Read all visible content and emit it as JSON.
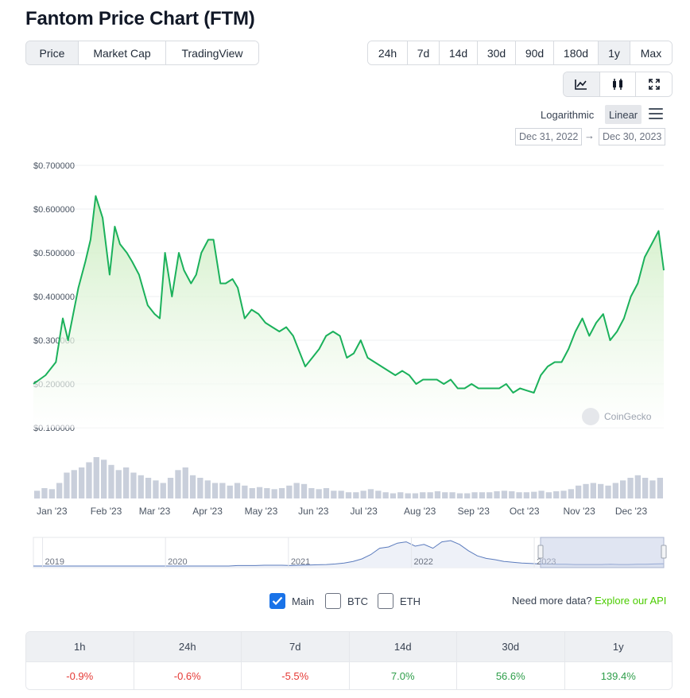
{
  "title": "Fantom Price Chart (FTM)",
  "tabs": [
    {
      "label": "Price",
      "active": true
    },
    {
      "label": "Market Cap",
      "active": false
    },
    {
      "label": "TradingView",
      "active": false
    }
  ],
  "ranges": [
    {
      "label": "24h",
      "active": false
    },
    {
      "label": "7d",
      "active": false
    },
    {
      "label": "14d",
      "active": false
    },
    {
      "label": "30d",
      "active": false
    },
    {
      "label": "90d",
      "active": false
    },
    {
      "label": "180d",
      "active": false
    },
    {
      "label": "1y",
      "active": true
    },
    {
      "label": "Max",
      "active": false
    }
  ],
  "view_buttons": [
    {
      "icon": "line-chart-icon",
      "active": true
    },
    {
      "icon": "candlestick-icon",
      "active": false
    },
    {
      "icon": "fullscreen-icon",
      "active": false
    }
  ],
  "scale": {
    "log_label": "Logarithmic",
    "linear_label": "Linear",
    "selected": "Linear"
  },
  "date_range": {
    "from": "Dec 31, 2022",
    "arrow": "→",
    "to": "Dec 30, 2023"
  },
  "watermark": "CoinGecko",
  "colors": {
    "line": "#1bb15b",
    "area": "#e8f6e2",
    "volume": "#c9cfdb",
    "accent": "#1a73e8",
    "link": "#4bcc00",
    "negative": "#e53935",
    "positive": "#2e9e4a",
    "navigator_line": "#5b7bbd",
    "navigator_selection": "#c7d0e8"
  },
  "chart_data": {
    "type": "area",
    "title": "Fantom Price Chart (FTM)",
    "ylim": [
      0.1,
      0.7
    ],
    "y_ticks": [
      "$0.700000",
      "$0.600000",
      "$0.500000",
      "$0.400000",
      "$0.300000",
      "$0.200000",
      "$0.100000"
    ],
    "y_tick_values": [
      0.7,
      0.6,
      0.5,
      0.4,
      0.3,
      0.2,
      0.1
    ],
    "x_ticks": [
      "Jan '23",
      "Feb '23",
      "Mar '23",
      "Apr '23",
      "May '23",
      "Jun '23",
      "Jul '23",
      "Aug '23",
      "Sep '23",
      "Oct '23",
      "Nov '23",
      "Dec '23"
    ],
    "x_tick_dates": [
      "2023-01-01",
      "2023-02-01",
      "2023-03-01",
      "2023-04-01",
      "2023-05-01",
      "2023-06-01",
      "2023-07-01",
      "2023-08-01",
      "2023-09-01",
      "2023-10-01",
      "2023-11-01",
      "2023-12-01"
    ],
    "series": [
      {
        "name": "Main",
        "x": [
          "2022-12-31",
          "2023-01-07",
          "2023-01-13",
          "2023-01-17",
          "2023-01-20",
          "2023-01-26",
          "2023-01-30",
          "2023-02-02",
          "2023-02-05",
          "2023-02-09",
          "2023-02-13",
          "2023-02-16",
          "2023-02-19",
          "2023-02-23",
          "2023-02-26",
          "2023-03-02",
          "2023-03-07",
          "2023-03-11",
          "2023-03-14",
          "2023-03-17",
          "2023-03-21",
          "2023-03-25",
          "2023-03-28",
          "2023-04-01",
          "2023-04-04",
          "2023-04-07",
          "2023-04-11",
          "2023-04-14",
          "2023-04-18",
          "2023-04-21",
          "2023-04-25",
          "2023-04-28",
          "2023-05-02",
          "2023-05-06",
          "2023-05-10",
          "2023-05-14",
          "2023-05-18",
          "2023-05-22",
          "2023-05-26",
          "2023-05-30",
          "2023-06-02",
          "2023-06-06",
          "2023-06-10",
          "2023-06-14",
          "2023-06-18",
          "2023-06-22",
          "2023-06-26",
          "2023-06-30",
          "2023-07-04",
          "2023-07-08",
          "2023-07-12",
          "2023-07-16",
          "2023-07-20",
          "2023-07-24",
          "2023-07-28",
          "2023-08-01",
          "2023-08-05",
          "2023-08-09",
          "2023-08-13",
          "2023-08-17",
          "2023-08-21",
          "2023-08-25",
          "2023-08-29",
          "2023-09-02",
          "2023-09-06",
          "2023-09-10",
          "2023-09-14",
          "2023-09-18",
          "2023-09-22",
          "2023-09-26",
          "2023-09-30",
          "2023-10-04",
          "2023-10-08",
          "2023-10-12",
          "2023-10-16",
          "2023-10-20",
          "2023-10-24",
          "2023-10-28",
          "2023-11-01",
          "2023-11-05",
          "2023-11-09",
          "2023-11-13",
          "2023-11-17",
          "2023-11-21",
          "2023-11-25",
          "2023-11-29",
          "2023-12-03",
          "2023-12-07",
          "2023-12-11",
          "2023-12-15",
          "2023-12-19",
          "2023-12-23",
          "2023-12-27",
          "2023-12-30"
        ],
        "y": [
          0.2,
          0.22,
          0.25,
          0.35,
          0.3,
          0.42,
          0.48,
          0.53,
          0.63,
          0.58,
          0.45,
          0.56,
          0.52,
          0.5,
          0.48,
          0.45,
          0.38,
          0.36,
          0.35,
          0.5,
          0.4,
          0.5,
          0.46,
          0.43,
          0.45,
          0.5,
          0.53,
          0.53,
          0.43,
          0.43,
          0.44,
          0.42,
          0.35,
          0.37,
          0.36,
          0.34,
          0.33,
          0.32,
          0.33,
          0.31,
          0.28,
          0.24,
          0.26,
          0.28,
          0.31,
          0.32,
          0.31,
          0.26,
          0.27,
          0.3,
          0.26,
          0.25,
          0.24,
          0.23,
          0.22,
          0.23,
          0.22,
          0.2,
          0.21,
          0.21,
          0.21,
          0.2,
          0.21,
          0.19,
          0.19,
          0.2,
          0.19,
          0.19,
          0.19,
          0.19,
          0.2,
          0.18,
          0.19,
          0.185,
          0.18,
          0.22,
          0.24,
          0.25,
          0.25,
          0.28,
          0.32,
          0.35,
          0.31,
          0.34,
          0.36,
          0.3,
          0.32,
          0.35,
          0.4,
          0.43,
          0.49,
          0.52,
          0.55,
          0.46
        ]
      }
    ],
    "volume_series": {
      "name": "Volume",
      "relative_values": [
        0.15,
        0.2,
        0.18,
        0.3,
        0.5,
        0.55,
        0.6,
        0.7,
        0.8,
        0.75,
        0.65,
        0.55,
        0.6,
        0.5,
        0.45,
        0.4,
        0.35,
        0.3,
        0.4,
        0.55,
        0.6,
        0.45,
        0.4,
        0.35,
        0.3,
        0.3,
        0.25,
        0.3,
        0.25,
        0.2,
        0.22,
        0.2,
        0.18,
        0.2,
        0.25,
        0.3,
        0.28,
        0.2,
        0.18,
        0.2,
        0.15,
        0.15,
        0.12,
        0.12,
        0.15,
        0.18,
        0.15,
        0.12,
        0.1,
        0.12,
        0.1,
        0.1,
        0.12,
        0.12,
        0.14,
        0.12,
        0.12,
        0.1,
        0.1,
        0.12,
        0.12,
        0.12,
        0.14,
        0.15,
        0.14,
        0.12,
        0.12,
        0.13,
        0.15,
        0.12,
        0.14,
        0.15,
        0.18,
        0.25,
        0.28,
        0.3,
        0.28,
        0.25,
        0.3,
        0.35,
        0.4,
        0.45,
        0.4,
        0.35,
        0.4
      ]
    },
    "grid": true,
    "legend": "none"
  },
  "navigator": {
    "year_labels": [
      "2019",
      "2020",
      "2021",
      "2022",
      "2023"
    ],
    "year_positions": [
      0.036,
      0.231,
      0.426,
      0.621,
      0.816
    ],
    "history_relative": [
      0.0,
      0.0,
      0.0,
      0.0,
      0.0,
      0.0,
      0.0,
      0.0,
      0.0,
      0.0,
      0.0,
      0.0,
      0.0,
      0.0,
      0.0,
      0.0,
      0.0,
      0.0,
      0.0,
      0.0,
      0.0,
      0.0,
      0.0,
      0.02,
      0.02,
      0.02,
      0.03,
      0.03,
      0.03,
      0.02,
      0.03,
      0.04,
      0.05,
      0.06,
      0.08,
      0.12,
      0.18,
      0.28,
      0.45,
      0.7,
      0.75,
      0.9,
      0.95,
      0.78,
      0.85,
      0.7,
      0.95,
      1.0,
      0.85,
      0.6,
      0.4,
      0.3,
      0.25,
      0.18,
      0.15,
      0.12,
      0.1,
      0.08,
      0.08,
      0.07,
      0.07,
      0.06,
      0.06,
      0.06,
      0.06,
      0.07,
      0.06,
      0.06,
      0.07,
      0.07,
      0.08,
      0.09
    ],
    "selection": {
      "from": "Dec 31, 2022",
      "to": "Dec 30, 2023"
    }
  },
  "options": [
    {
      "label": "Main",
      "checked": true
    },
    {
      "label": "BTC",
      "checked": false
    },
    {
      "label": "ETH",
      "checked": false
    }
  ],
  "more_data": {
    "text": "Need more data?",
    "link": "Explore our API"
  },
  "percent_changes": {
    "headers": [
      "1h",
      "24h",
      "7d",
      "14d",
      "30d",
      "1y"
    ],
    "values": [
      {
        "text": "-0.9%",
        "sign": "neg"
      },
      {
        "text": "-0.6%",
        "sign": "neg"
      },
      {
        "text": "-5.5%",
        "sign": "neg"
      },
      {
        "text": "7.0%",
        "sign": "pos"
      },
      {
        "text": "56.6%",
        "sign": "pos"
      },
      {
        "text": "139.4%",
        "sign": "pos"
      }
    ]
  }
}
